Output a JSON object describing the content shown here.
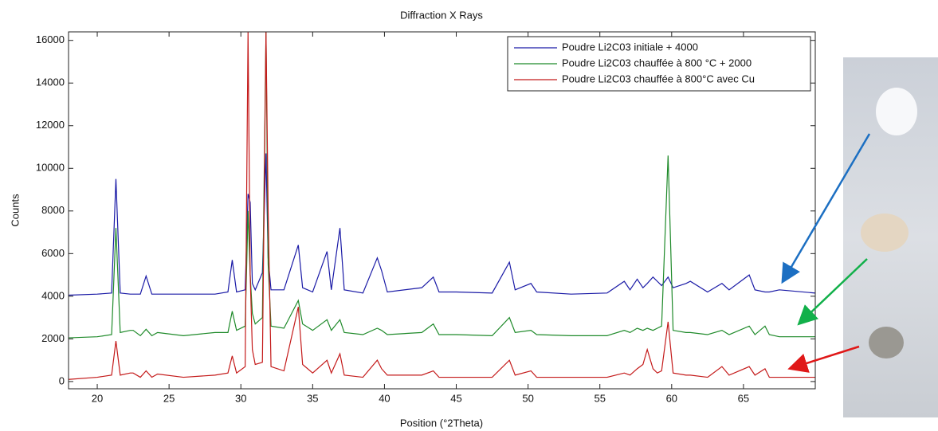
{
  "chart_data": {
    "type": "line",
    "title": "Diffraction X Rays",
    "xlabel": "Position (°2Theta)",
    "ylabel": "Counts",
    "xlim": [
      18,
      70
    ],
    "ylim": [
      -340,
      16400
    ],
    "xticks": [
      20,
      25,
      30,
      35,
      40,
      45,
      50,
      55,
      60,
      65
    ],
    "yticks": [
      0,
      2000,
      4000,
      6000,
      8000,
      10000,
      12000,
      14000,
      16000
    ],
    "legend": "upper right",
    "grid": false,
    "x": [
      18,
      20,
      21.0,
      21.3,
      21.6,
      22.3,
      22.5,
      23.0,
      23.4,
      23.8,
      24.2,
      26,
      28.2,
      29.1,
      29.4,
      29.7,
      30.3,
      30.5,
      30.65,
      30.8,
      31.0,
      31.5,
      31.75,
      31.9,
      32.1,
      33.0,
      34.0,
      34.3,
      35.0,
      36.0,
      36.3,
      36.9,
      37.2,
      38.5,
      39.5,
      39.8,
      40.2,
      42.6,
      43.4,
      43.8,
      45,
      47.5,
      48.7,
      49.1,
      50.2,
      50.6,
      53,
      55.5,
      56.7,
      57.1,
      57.6,
      58.0,
      58.3,
      58.7,
      59.0,
      59.3,
      59.75,
      60.1,
      61.0,
      61.3,
      62.5,
      63.5,
      64,
      65.4,
      65.8,
      66.5,
      66.8,
      67.5,
      70
    ],
    "series": [
      {
        "name": "Poudre Li2C03 initiale + 4000",
        "color": "#1a1aa6",
        "values": [
          4050,
          4100,
          4150,
          9500,
          4150,
          4100,
          4100,
          4100,
          4950,
          4100,
          4100,
          4100,
          4100,
          4200,
          5700,
          4200,
          4300,
          8800,
          8400,
          4600,
          4300,
          5100,
          10700,
          5800,
          4300,
          4300,
          6400,
          4400,
          4200,
          6100,
          4300,
          7200,
          4300,
          4150,
          5800,
          5200,
          4200,
          4400,
          4900,
          4200,
          4200,
          4150,
          5600,
          4300,
          4600,
          4200,
          4100,
          4150,
          4700,
          4300,
          4800,
          4400,
          4600,
          4900,
          4700,
          4500,
          4900,
          4400,
          4600,
          4700,
          4200,
          4600,
          4300,
          5000,
          4300,
          4200,
          4200,
          4300,
          4150
        ]
      },
      {
        "name": "Poudre Li2C03 chauffée à 800 °C + 2000",
        "color": "#1f8a2a",
        "values": [
          2050,
          2100,
          2200,
          7200,
          2300,
          2400,
          2400,
          2150,
          2450,
          2150,
          2300,
          2150,
          2300,
          2300,
          3300,
          2400,
          2600,
          8000,
          5000,
          3200,
          2700,
          3000,
          16400,
          5500,
          2600,
          2500,
          3800,
          2700,
          2400,
          2900,
          2400,
          2900,
          2300,
          2200,
          2500,
          2400,
          2200,
          2300,
          2700,
          2200,
          2200,
          2150,
          3000,
          2300,
          2400,
          2200,
          2150,
          2150,
          2400,
          2300,
          2500,
          2400,
          2500,
          2400,
          2500,
          2600,
          10600,
          2400,
          2300,
          2300,
          2200,
          2400,
          2200,
          2600,
          2200,
          2600,
          2200,
          2100,
          2100
        ]
      },
      {
        "name": "Poudre Li2C03 chauffée à 800°C avec Cu",
        "color": "#c41a1a",
        "values": [
          100,
          200,
          300,
          1900,
          300,
          400,
          400,
          200,
          500,
          200,
          350,
          200,
          300,
          400,
          1200,
          400,
          700,
          16400,
          5000,
          1500,
          800,
          900,
          16400,
          8000,
          700,
          500,
          3500,
          800,
          400,
          1000,
          400,
          1300,
          300,
          200,
          1000,
          600,
          300,
          300,
          500,
          200,
          200,
          200,
          1000,
          300,
          500,
          200,
          200,
          200,
          400,
          300,
          600,
          800,
          1500,
          600,
          400,
          500,
          2800,
          400,
          300,
          300,
          200,
          700,
          300,
          700,
          300,
          600,
          200,
          200,
          200
        ]
      }
    ]
  }
}
